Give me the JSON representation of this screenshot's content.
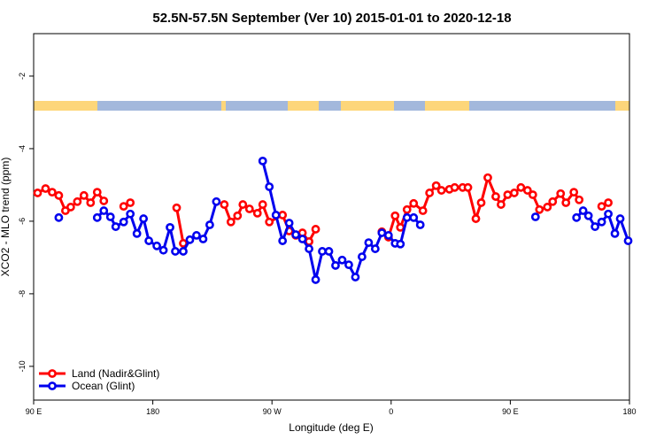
{
  "chart_data": {
    "type": "line",
    "title": "52.5N-57.5N September (Ver 10)   2015-01-01 to 2020-12-18",
    "xlabel": "Longitude (deg E)",
    "ylabel": "XCO2 - MLO trend (ppm)",
    "xlim": [
      90,
      540
    ],
    "ylim": [
      -10.93,
      -0.83
    ],
    "xticks": [
      {
        "value": 90,
        "label": "90 E"
      },
      180,
      {
        "value": 270,
        "label": "90 W"
      },
      {
        "value": 360,
        "label": "0"
      },
      {
        "value": 450,
        "label": "90 E"
      },
      {
        "value": 540,
        "label": "180"
      }
    ],
    "yticks": [
      -2,
      -4,
      -6,
      -8,
      -10
    ],
    "legend": "bottom-left",
    "series": [
      {
        "name": "Land (Nadir&Glint)",
        "color": "#ff0000",
        "x": [
          93,
          99,
          104,
          109,
          114,
          118,
          123,
          128,
          133,
          138,
          143,
          null,
          158,
          163,
          null,
          198,
          203,
          null,
          234,
          239,
          244,
          248,
          253,
          259,
          263,
          268,
          278,
          283,
          288,
          293,
          298,
          303,
          null,
          353,
          358,
          363,
          367,
          372,
          377,
          384,
          389,
          394,
          398,
          404,
          408,
          414,
          418,
          424,
          428,
          433,
          439,
          443,
          448,
          453,
          458,
          463,
          467,
          472,
          478,
          482,
          488,
          492,
          498,
          502,
          null,
          519,
          524
        ],
        "values": [
          -5.22,
          -5.1,
          -5.2,
          -5.29,
          -5.71,
          -5.61,
          -5.46,
          -5.29,
          -5.49,
          -5.2,
          -5.44,
          null,
          -5.59,
          -5.49,
          null,
          -5.63,
          -6.61,
          null,
          -5.54,
          -6.02,
          -5.85,
          -5.54,
          -5.66,
          -5.78,
          -5.54,
          -6.02,
          -5.83,
          -6.27,
          -6.39,
          -6.32,
          -6.56,
          -6.22,
          null,
          -6.29,
          -6.44,
          -5.85,
          -6.17,
          -5.68,
          -5.51,
          -5.71,
          -5.22,
          -5.02,
          -5.15,
          -5.12,
          -5.07,
          -5.07,
          -5.07,
          -5.93,
          -5.49,
          -4.8,
          -5.32,
          -5.54,
          -5.27,
          -5.22,
          -5.07,
          -5.15,
          -5.27,
          -5.68,
          -5.61,
          -5.46,
          -5.24,
          -5.49,
          -5.2,
          -5.41,
          null,
          -5.59,
          -5.49
        ]
      },
      {
        "name": "Ocean (Glint)",
        "color": "#0000ee",
        "x": [
          109,
          null,
          138,
          143,
          148,
          152,
          158,
          163,
          168,
          173,
          177,
          183,
          188,
          193,
          197,
          203,
          208,
          213,
          218,
          223,
          228,
          null,
          263,
          268,
          273,
          278,
          283,
          288,
          293,
          298,
          303,
          308,
          313,
          318,
          323,
          328,
          333,
          338,
          343,
          348,
          353,
          358,
          363,
          367,
          372,
          377,
          382,
          null,
          469,
          null,
          500,
          505,
          509,
          514,
          519,
          524,
          529,
          533,
          539
        ],
        "values": [
          -5.9,
          null,
          -5.9,
          -5.71,
          -5.88,
          -6.15,
          -6.02,
          -5.8,
          -6.34,
          -5.93,
          -6.54,
          -6.68,
          -6.8,
          -6.17,
          -6.83,
          -6.83,
          -6.51,
          -6.39,
          -6.49,
          -6.1,
          -5.46,
          null,
          -4.34,
          -5.05,
          -5.83,
          -6.54,
          -6.05,
          -6.37,
          -6.49,
          -6.76,
          -7.61,
          -6.83,
          -6.83,
          -7.22,
          -7.07,
          -7.2,
          -7.54,
          -6.98,
          -6.59,
          -6.76,
          -6.32,
          -6.39,
          -6.61,
          -6.63,
          -5.9,
          -5.9,
          -6.1,
          null,
          -5.88,
          null,
          -5.9,
          -5.71,
          -5.85,
          -6.15,
          -6.02,
          -5.8,
          -6.34,
          -5.93,
          -6.54
        ]
      }
    ]
  }
}
